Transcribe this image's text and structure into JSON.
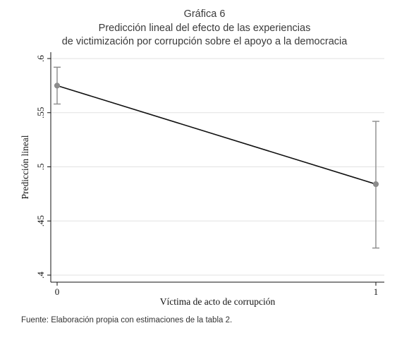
{
  "figure": {
    "title_lines": [
      "Gráfica 6",
      "Predicción lineal del efecto de las experiencias",
      "de victimización por corrupción sobre el apoyo a la democracia"
    ],
    "source": "Fuente: Elaboración propia con estimaciones de la tabla 2."
  },
  "chart_data": {
    "type": "line",
    "xlabel": "Víctima de acto de corrupción",
    "ylabel": "Predicción lineal",
    "x_ticks": [
      0,
      1
    ],
    "x_tick_labels": [
      "0",
      "1"
    ],
    "y_ticks": [
      0.4,
      0.45,
      0.5,
      0.55,
      0.6
    ],
    "y_tick_labels": [
      ".4",
      ".45",
      ".5",
      ".55",
      ".6"
    ],
    "xlim": [
      0,
      1
    ],
    "ylim": [
      0.4,
      0.6
    ],
    "grid": true,
    "series": [
      {
        "x": [
          0,
          1
        ],
        "y": [
          0.575,
          0.484
        ],
        "ci_low": [
          0.558,
          0.425
        ],
        "ci_high": [
          0.592,
          0.542
        ]
      }
    ],
    "colors": {
      "line": "#111111",
      "marker": "#8c8c8c",
      "errorbar": "#8c8c8c",
      "grid": "#e2e2e2",
      "axis": "#111111"
    }
  }
}
